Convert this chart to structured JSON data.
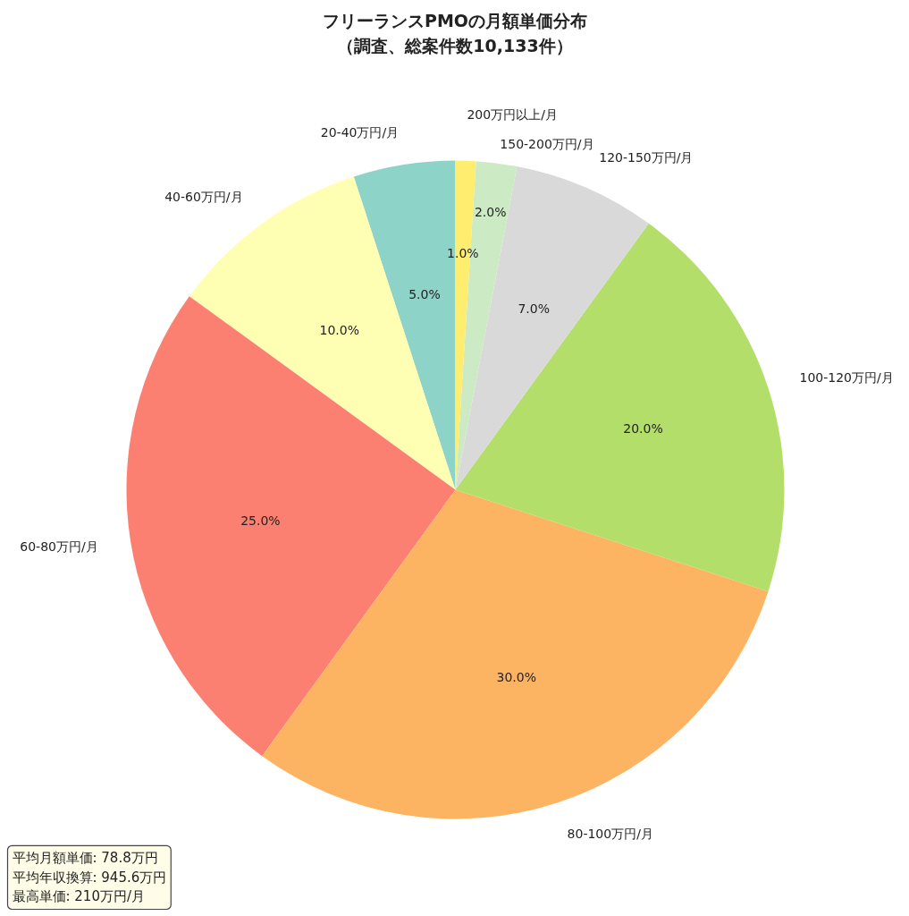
{
  "chart_data": {
    "type": "pie",
    "title": "フリーランスPMOの月額単価分布",
    "subtitle": "（調査、総案件数10,133件）",
    "categories": [
      "20-40万円/月",
      "40-60万円/月",
      "60-80万円/月",
      "80-100万円/月",
      "100-120万円/月",
      "120-150万円/月",
      "150-200万円/月",
      "200万円以上/月"
    ],
    "values": [
      5,
      10,
      25,
      30,
      20,
      7,
      2,
      1
    ],
    "colors": [
      "#8dd3c7",
      "#ffffb3",
      "#fb8072",
      "#fdb462",
      "#b3de69",
      "#d9d9d9",
      "#ccebc5",
      "#ffed6f"
    ],
    "value_labels": [
      "5.0%",
      "10.0%",
      "25.0%",
      "30.0%",
      "20.0%",
      "7.0%",
      "2.0%",
      "1.0%"
    ],
    "annotations": [
      "平均月額単価: 78.8万円",
      "平均年収換算: 945.6万円",
      "最高単価: 210万円/月"
    ]
  }
}
